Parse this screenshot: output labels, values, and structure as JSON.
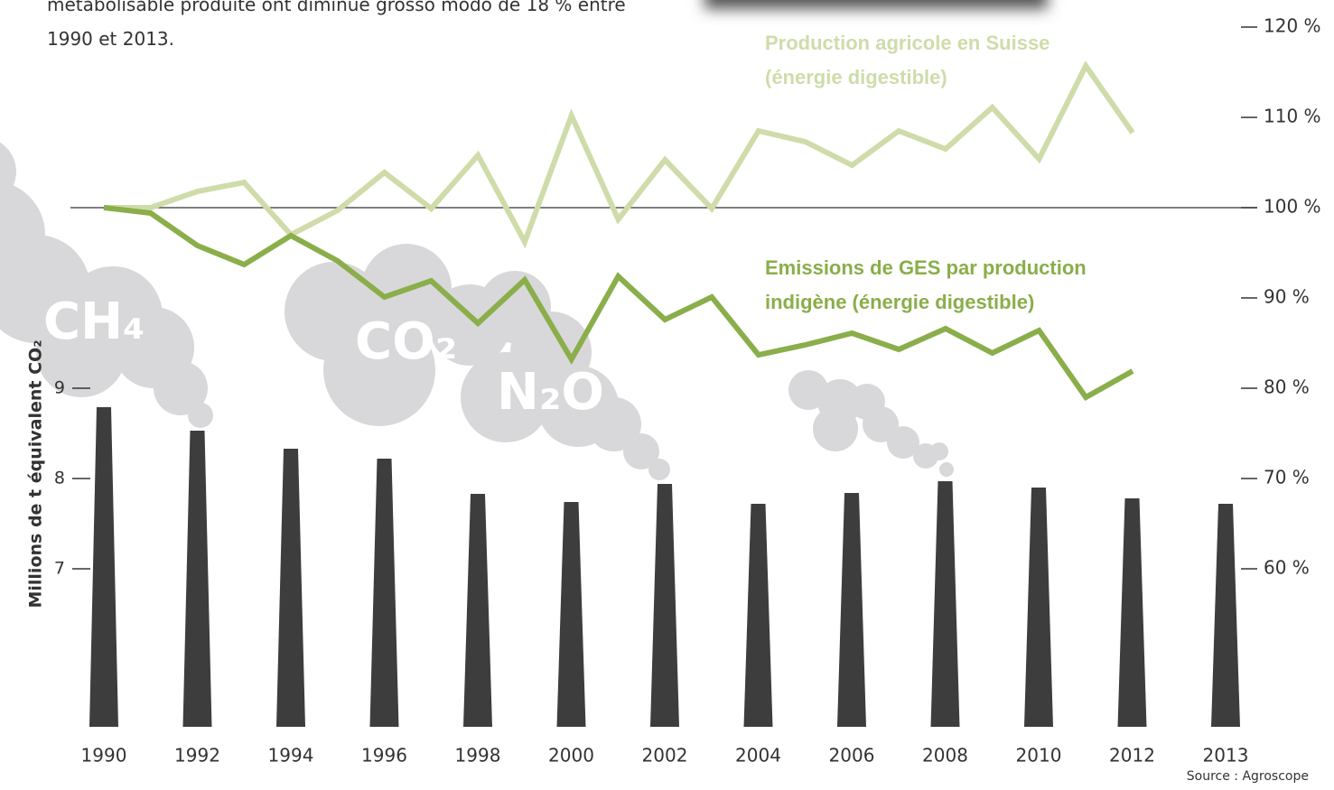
{
  "intro": "métabolisable produite ont diminué grosso modo de 18 % entre 1990 et 2013.",
  "source": "Source : Agroscope",
  "gas_labels": [
    "CH₄",
    "CO₂",
    "N₂O"
  ],
  "chart_data": [
    {
      "type": "bar",
      "y_label": "Millions de t équivalent CO₂",
      "color": "#3d3d3d",
      "categories": [
        "1990",
        "1992",
        "1994",
        "1996",
        "1998",
        "2000",
        "2002",
        "2004",
        "2006",
        "2008",
        "2010",
        "2012",
        "2013"
      ],
      "values": [
        8.79,
        8.53,
        8.33,
        8.22,
        7.83,
        7.74,
        7.94,
        7.72,
        7.84,
        7.97,
        7.9,
        7.78,
        7.72
      ],
      "ylim": [
        5.25,
        13
      ],
      "yticks": [
        7,
        8,
        9
      ]
    },
    {
      "type": "line",
      "axis": "y2",
      "x": [
        1990,
        1991,
        1992,
        1993,
        1994,
        1995,
        1996,
        1997,
        1998,
        1999,
        2000,
        2001,
        2002,
        2003,
        2004,
        2005,
        2006,
        2007,
        2008,
        2009,
        2010,
        2011,
        2012
      ],
      "xlim": [
        1990,
        2012
      ],
      "y2lim": [
        42.5,
        120
      ],
      "reference_line": 100,
      "y2ticks": [
        {
          "value": 120,
          "label": "120 %"
        },
        {
          "value": 110,
          "label": "110 %"
        },
        {
          "value": 100,
          "label": "100 %"
        },
        {
          "value": 90,
          "label": "90 %"
        },
        {
          "value": 80,
          "label": "80 %"
        },
        {
          "value": 70,
          "label": "70 %"
        },
        {
          "value": 60,
          "label": "60 %"
        }
      ],
      "series": [
        {
          "name": "Production agricole en Suisse (énergie digestible)",
          "color": "#cfdcaa",
          "values": [
            100,
            100,
            101.8,
            102.8,
            97,
            99.7,
            103.9,
            99.9,
            105.8,
            96.2,
            110.2,
            98.7,
            105.3,
            99.9,
            108.5,
            107.3,
            104.7,
            108.5,
            106.5,
            111.1,
            105.4,
            115.7,
            108.3
          ]
        },
        {
          "name": "Emissions de GES par production indigène (énergie digestible)",
          "color": "#8aae4a",
          "values": [
            100,
            99.4,
            95.8,
            93.7,
            96.9,
            94.1,
            90.1,
            91.9,
            87.2,
            92,
            83.2,
            92.4,
            87.6,
            90.1,
            83.7,
            84.8,
            86.1,
            84.3,
            86.6,
            83.9,
            86.4,
            79,
            81.9
          ]
        }
      ]
    }
  ]
}
